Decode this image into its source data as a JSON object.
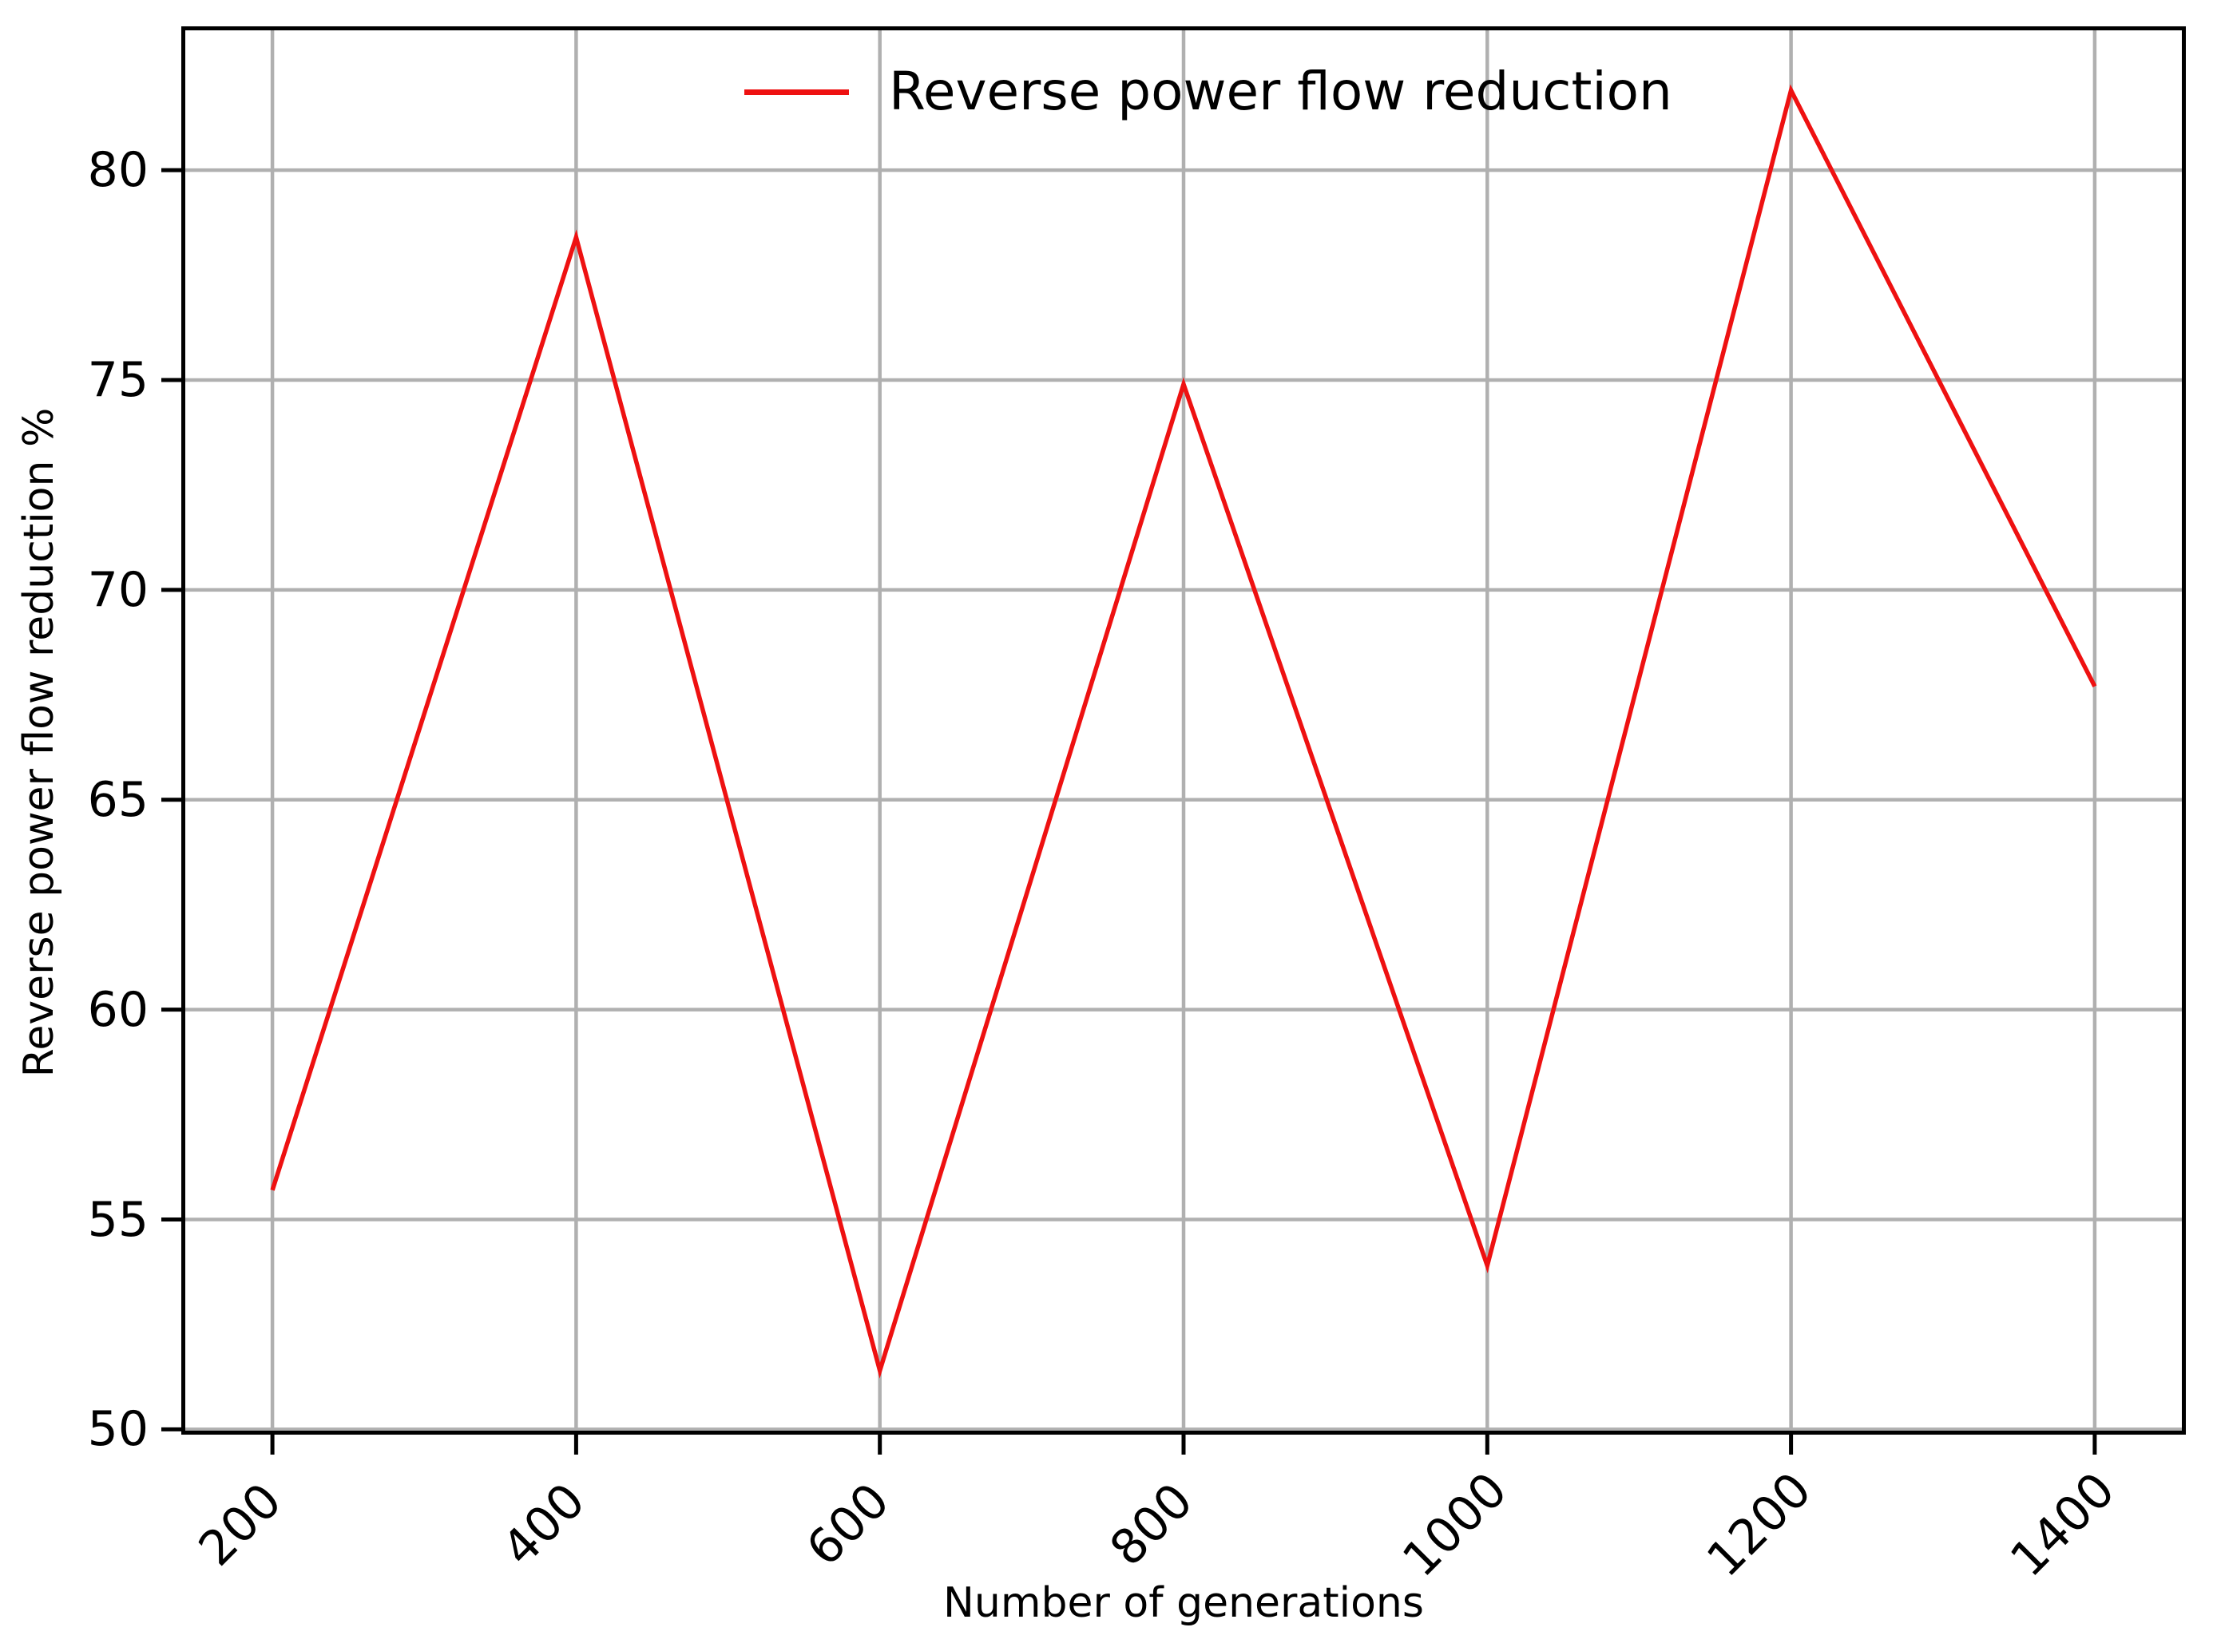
{
  "chart_data": {
    "type": "line",
    "title": "",
    "xlabel": "Number of generations",
    "ylabel": "Reverse power flow reduction %",
    "legend": {
      "label": "Reverse power flow reduction",
      "position": "upper center",
      "frame": false
    },
    "series": [
      {
        "name": "Reverse power flow reduction",
        "color": "#ee1111",
        "linewidth": 5.5,
        "x": [
          200,
          400,
          600,
          800,
          1000,
          1200,
          1400
        ],
        "y": [
          55.7,
          78.4,
          51.4,
          74.9,
          53.9,
          81.9,
          67.7
        ]
      }
    ],
    "x_ticks": [
      200,
      400,
      600,
      800,
      1000,
      1200,
      1400
    ],
    "x_tick_labels": [
      "200",
      "400",
      "600",
      "800",
      "1000",
      "1200",
      "1400"
    ],
    "x_tick_rotation_deg": 45,
    "y_ticks": [
      50,
      55,
      60,
      65,
      70,
      75,
      80
    ],
    "y_tick_labels": [
      "50",
      "55",
      "60",
      "65",
      "70",
      "75",
      "80"
    ],
    "xlim": [
      140,
      1460
    ],
    "ylim": [
      49.875,
      83.425
    ],
    "grid": true,
    "grid_color": "#b0b0b0",
    "spine_color": "#000000",
    "background_color": "#ffffff"
  }
}
